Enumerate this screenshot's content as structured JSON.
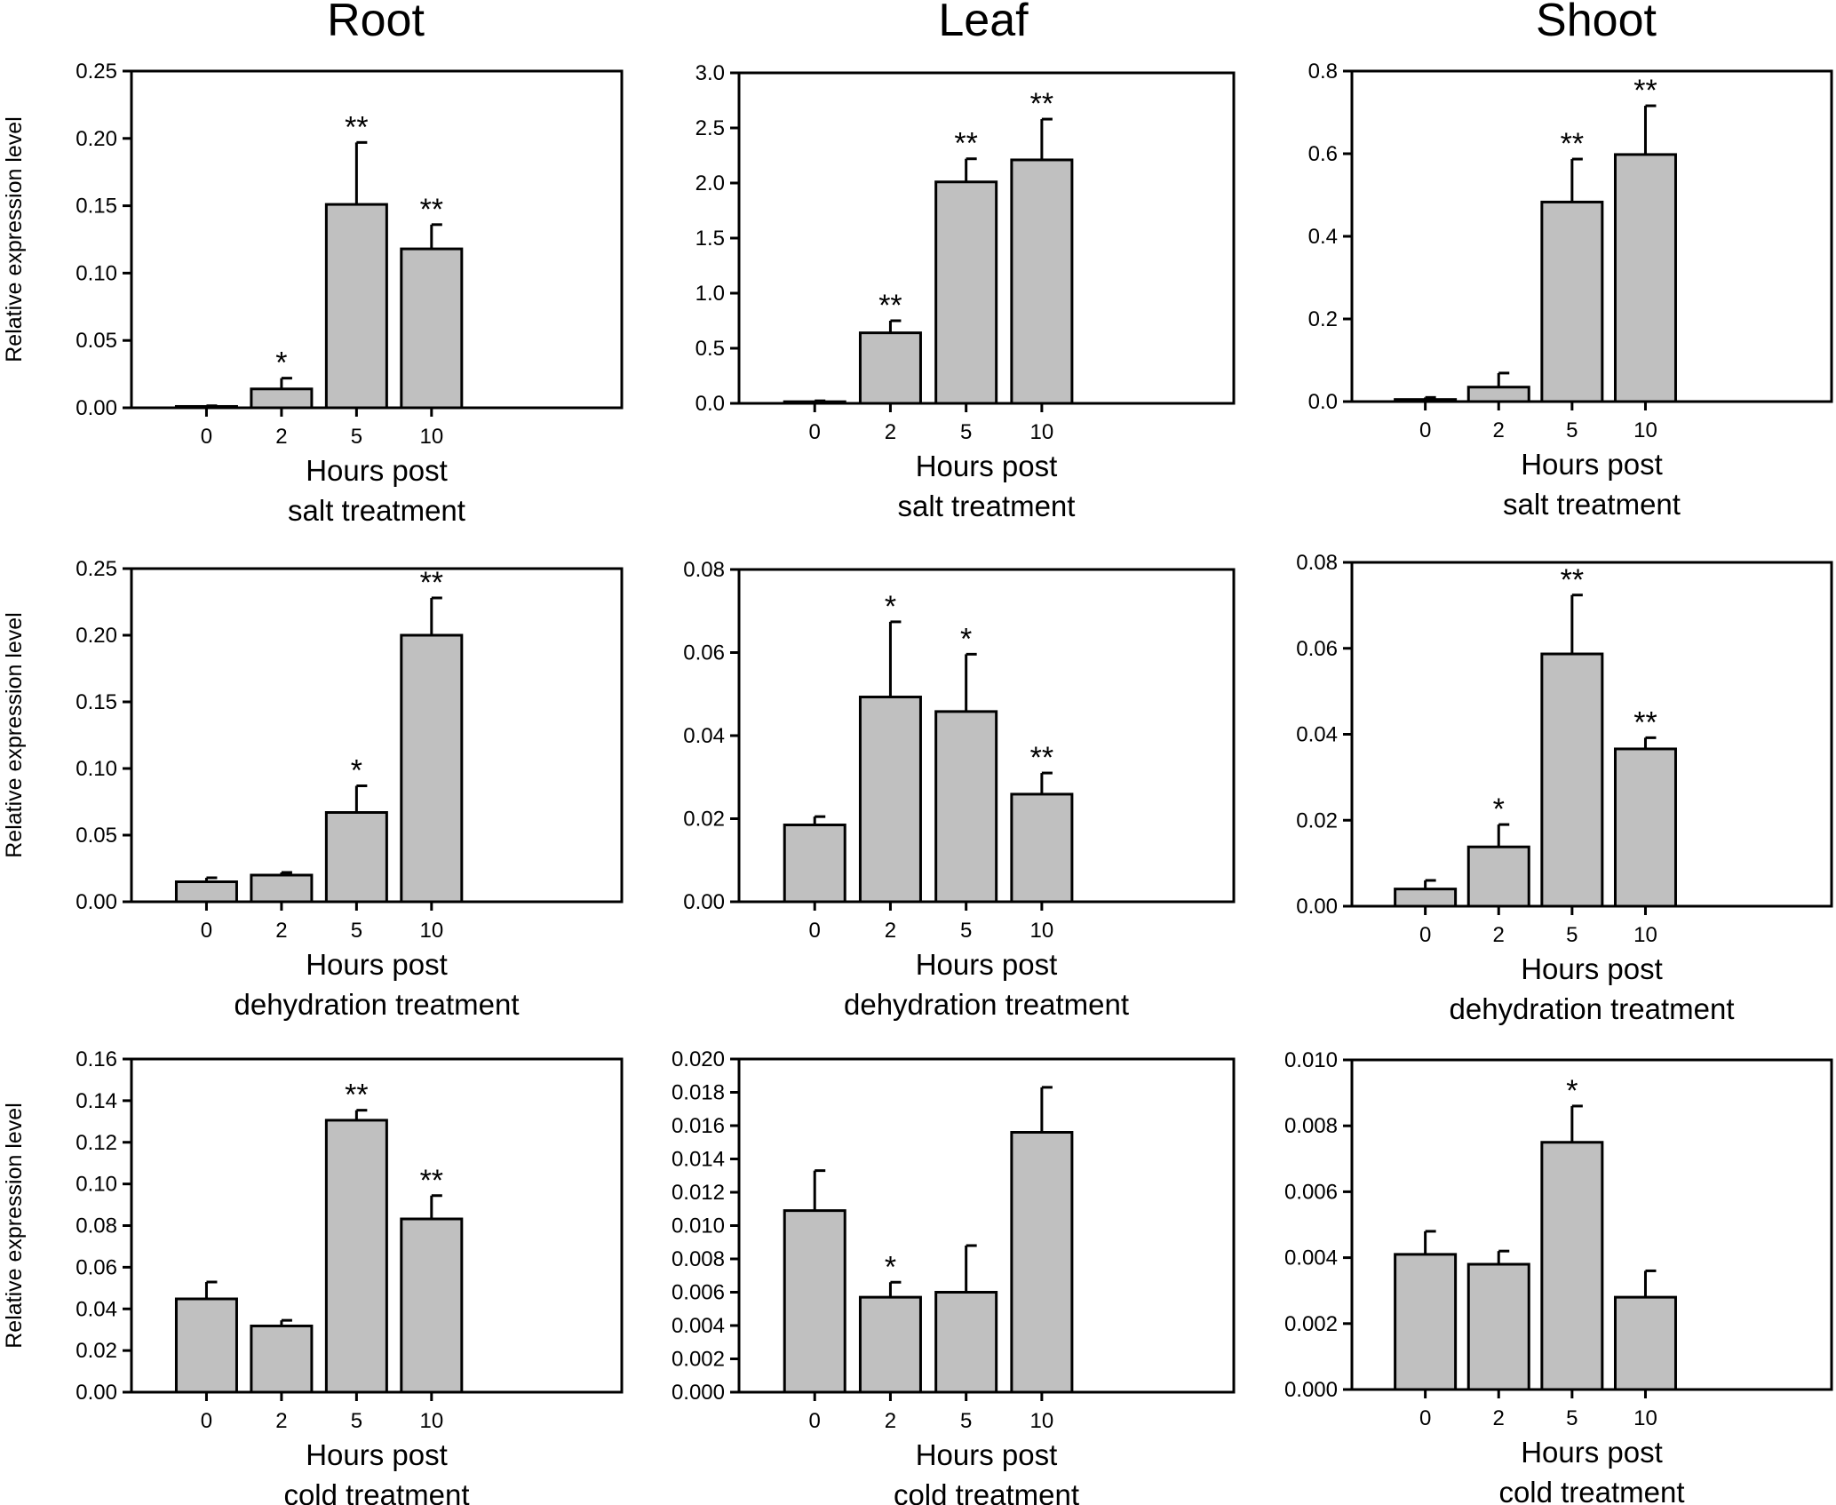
{
  "column_titles": [
    "Root",
    "Leaf",
    "Shoot"
  ],
  "y_axis_label": "Relative expression level",
  "x_axis_label_line1": "Hours post",
  "chart_data": [
    {
      "type": "bar",
      "tissue": "Root",
      "treatment": "salt treatment",
      "categories": [
        "0",
        "2",
        "5",
        "10"
      ],
      "values": [
        0.001,
        0.014,
        0.151,
        0.118
      ],
      "errors": [
        0.0005,
        0.008,
        0.046,
        0.018
      ],
      "significance": [
        "",
        "*",
        "**",
        "**"
      ],
      "ylim": [
        0,
        0.25
      ],
      "yticks": [
        "0.00",
        "0.05",
        "0.10",
        "0.15",
        "0.20",
        "0.25"
      ],
      "xlabel": "Hours post salt treatment",
      "ylabel": "Relative expression level"
    },
    {
      "type": "bar",
      "tissue": "Leaf",
      "treatment": "salt treatment",
      "categories": [
        "0",
        "2",
        "5",
        "10"
      ],
      "values": [
        0.015,
        0.64,
        2.01,
        2.21
      ],
      "errors": [
        0.008,
        0.11,
        0.21,
        0.37
      ],
      "significance": [
        "",
        "**",
        "**",
        "**"
      ],
      "ylim": [
        0,
        3.0
      ],
      "yticks": [
        "0.0",
        "0.5",
        "1.0",
        "1.5",
        "2.0",
        "2.5",
        "3.0"
      ],
      "xlabel": "Hours post salt treatment",
      "ylabel": ""
    },
    {
      "type": "bar",
      "tissue": "Shoot",
      "treatment": "salt treatment",
      "categories": [
        "0",
        "2",
        "5",
        "10"
      ],
      "values": [
        0.005,
        0.035,
        0.483,
        0.598
      ],
      "errors": [
        0.005,
        0.034,
        0.104,
        0.118
      ],
      "significance": [
        "",
        "",
        "**",
        "**"
      ],
      "ylim": [
        0,
        0.8
      ],
      "yticks": [
        "0.0",
        "0.2",
        "0.4",
        "0.6",
        "0.8"
      ],
      "xlabel": "Hours post salt treatment",
      "ylabel": ""
    },
    {
      "type": "bar",
      "tissue": "Root",
      "treatment": "dehydration treatment",
      "categories": [
        "0",
        "2",
        "5",
        "10"
      ],
      "values": [
        0.015,
        0.02,
        0.067,
        0.2
      ],
      "errors": [
        0.003,
        0.002,
        0.02,
        0.028
      ],
      "significance": [
        "",
        "",
        "*",
        "**"
      ],
      "ylim": [
        0,
        0.25
      ],
      "yticks": [
        "0.00",
        "0.05",
        "0.10",
        "0.15",
        "0.20",
        "0.25"
      ],
      "xlabel": "Hours post dehydration treatment",
      "ylabel": "Relative expression level"
    },
    {
      "type": "bar",
      "tissue": "Leaf",
      "treatment": "dehydration treatment",
      "categories": [
        "0",
        "2",
        "5",
        "10"
      ],
      "values": [
        0.0185,
        0.0493,
        0.0458,
        0.0259
      ],
      "errors": [
        0.002,
        0.0181,
        0.0138,
        0.0051
      ],
      "significance": [
        "",
        "*",
        "*",
        "**"
      ],
      "ylim": [
        0,
        0.08
      ],
      "yticks": [
        "0.00",
        "0.02",
        "0.04",
        "0.06",
        "0.08"
      ],
      "xlabel": "Hours post dehydration treatment",
      "ylabel": ""
    },
    {
      "type": "bar",
      "tissue": "Shoot",
      "treatment": "dehydration treatment",
      "categories": [
        "0",
        "2",
        "5",
        "10"
      ],
      "values": [
        0.004,
        0.0138,
        0.0587,
        0.0366
      ],
      "errors": [
        0.002,
        0.0052,
        0.0137,
        0.0026
      ],
      "significance": [
        "",
        "*",
        "**",
        "**"
      ],
      "ylim": [
        0,
        0.08
      ],
      "yticks": [
        "0.00",
        "0.02",
        "0.04",
        "0.06",
        "0.08"
      ],
      "xlabel": "Hours post dehydration treatment",
      "ylabel": ""
    },
    {
      "type": "bar",
      "tissue": "Root",
      "treatment": "cold treatment",
      "categories": [
        "0",
        "2",
        "5",
        "10"
      ],
      "values": [
        0.0448,
        0.0318,
        0.1306,
        0.0832
      ],
      "errors": [
        0.0081,
        0.0027,
        0.0048,
        0.0112
      ],
      "significance": [
        "",
        "",
        "**",
        "**"
      ],
      "ylim": [
        0,
        0.16
      ],
      "yticks": [
        "0.00",
        "0.02",
        "0.04",
        "0.06",
        "0.08",
        "0.10",
        "0.12",
        "0.14",
        "0.16"
      ],
      "xlabel": "Hours post cold treatment",
      "ylabel": "Relative expression level"
    },
    {
      "type": "bar",
      "tissue": "Leaf",
      "treatment": "cold treatment",
      "categories": [
        "0",
        "2",
        "5",
        "10"
      ],
      "values": [
        0.0109,
        0.0057,
        0.006,
        0.0156
      ],
      "errors": [
        0.0024,
        0.0009,
        0.0028,
        0.0027
      ],
      "significance": [
        "",
        "*",
        "",
        ""
      ],
      "ylim": [
        0,
        0.02
      ],
      "yticks": [
        "0.000",
        "0.002",
        "0.004",
        "0.006",
        "0.008",
        "0.010",
        "0.012",
        "0.014",
        "0.016",
        "0.018",
        "0.020"
      ],
      "xlabel": "Hours post cold treatment",
      "ylabel": ""
    },
    {
      "type": "bar",
      "tissue": "Shoot",
      "treatment": "cold treatment",
      "categories": [
        "0",
        "2",
        "5",
        "10"
      ],
      "values": [
        0.0041,
        0.0038,
        0.0075,
        0.0028
      ],
      "errors": [
        0.0007,
        0.0004,
        0.0011,
        0.0008
      ],
      "significance": [
        "",
        "",
        "*",
        ""
      ],
      "ylim": [
        0,
        0.01
      ],
      "yticks": [
        "0.000",
        "0.002",
        "0.004",
        "0.006",
        "0.008",
        "0.010"
      ],
      "xlabel": "Hours post cold treatment",
      "ylabel": ""
    }
  ]
}
